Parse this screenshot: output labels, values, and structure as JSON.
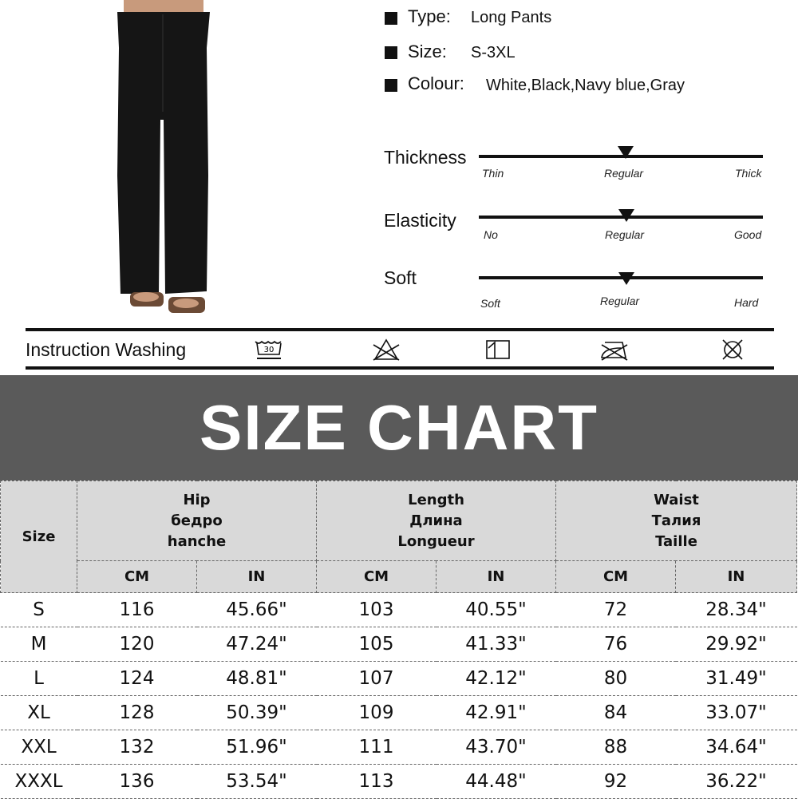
{
  "specs": [
    {
      "label": "Type:",
      "value": "Long Pants"
    },
    {
      "label": "Size:",
      "value": "S-3XL"
    },
    {
      "label": "Colour:",
      "value": "White,Black,Navy blue,Gray"
    }
  ],
  "sliders": [
    {
      "label": "Thickness",
      "left": "Thin",
      "mid": "Regular",
      "right": "Thick",
      "level": 0.5
    },
    {
      "label": "Elasticity",
      "left": "No",
      "mid": "Regular",
      "right": "Good",
      "level": 0.5
    },
    {
      "label": "Soft",
      "left": "Soft",
      "mid": "Regular",
      "right": "Hard",
      "level": 0.5
    }
  ],
  "washing": {
    "label": "Instruction Washing",
    "wash_temp": "30",
    "icons": [
      "wash-30-icon",
      "no-bleach-icon",
      "dry-flat-icon",
      "no-iron-icon",
      "no-tumble-dry-icon"
    ]
  },
  "banner": "SIZE CHART",
  "table": {
    "size_header": "Size",
    "groups": [
      {
        "lines": [
          "Hip",
          "бедро",
          "hanche"
        ]
      },
      {
        "lines": [
          "Length",
          "Длина",
          "Longueur"
        ]
      },
      {
        "lines": [
          "Waist",
          "Талия",
          "Taille"
        ]
      }
    ],
    "units": [
      "CM",
      "IN"
    ],
    "rows": [
      [
        "S",
        "116",
        "45.66\"",
        "103",
        "40.55\"",
        "72",
        "28.34\""
      ],
      [
        "M",
        "120",
        "47.24\"",
        "105",
        "41.33\"",
        "76",
        "29.92\""
      ],
      [
        "L",
        "124",
        "48.81\"",
        "107",
        "42.12\"",
        "80",
        "31.49\""
      ],
      [
        "XL",
        "128",
        "50.39\"",
        "109",
        "42.91\"",
        "84",
        "33.07\""
      ],
      [
        "XXL",
        "132",
        "51.96\"",
        "111",
        "43.70\"",
        "88",
        "34.64\""
      ],
      [
        "XXXL",
        "136",
        "53.54\"",
        "113",
        "44.48\"",
        "92",
        "36.22\""
      ]
    ]
  },
  "colors": {
    "banner": "#5a5a5a",
    "header": "#d9d9d9",
    "product": "#111111"
  }
}
